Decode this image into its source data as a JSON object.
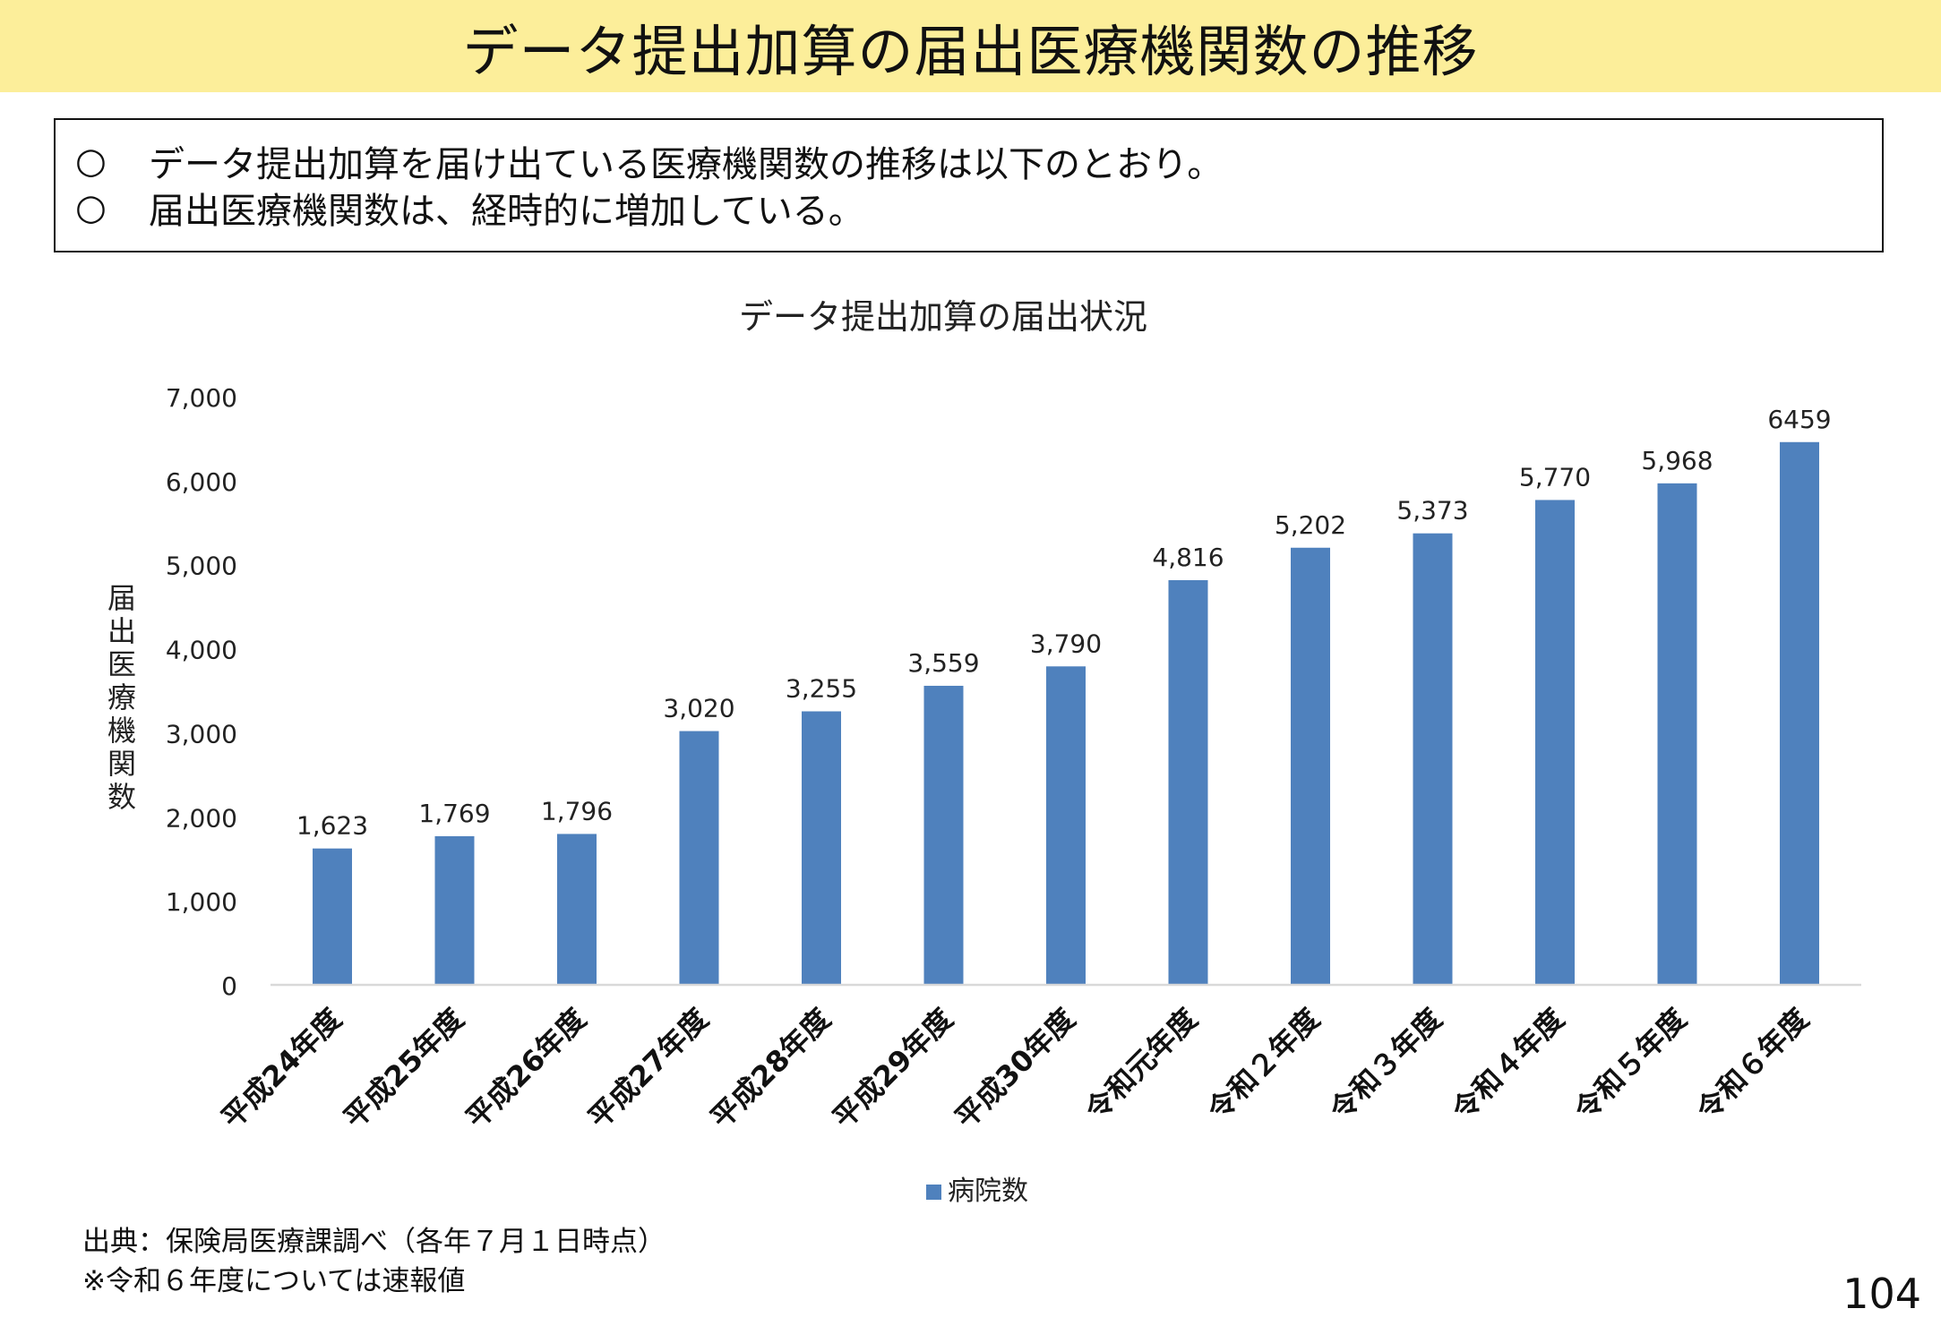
{
  "header": {
    "title": "データ提出加算の届出医療機関数の推移"
  },
  "summary": {
    "bullets": [
      {
        "mark": "○",
        "text": "データ提出加算を届け出ている医療機関数の推移は以下のとおり。"
      },
      {
        "mark": "○",
        "text": "届出医療機関数は、経時的に増加している。"
      }
    ]
  },
  "chart_data": {
    "type": "bar",
    "title": "データ提出加算の届出状況",
    "xlabel": "",
    "ylabel": "届出医療機関数",
    "ylim": [
      0,
      7000
    ],
    "yticks": [
      0,
      1000,
      2000,
      3000,
      4000,
      5000,
      6000,
      7000
    ],
    "ytick_labels": [
      "0",
      "1,000",
      "2,000",
      "3,000",
      "4,000",
      "5,000",
      "6,000",
      "7,000"
    ],
    "grid": false,
    "legend_position": "bottom",
    "categories": [
      "平成24年度",
      "平成25年度",
      "平成26年度",
      "平成27年度",
      "平成28年度",
      "平成29年度",
      "平成30年度",
      "令和元年度",
      "令和２年度",
      "令和３年度",
      "令和４年度",
      "令和５年度",
      "令和６年度"
    ],
    "series": [
      {
        "name": "病院数",
        "color": "#4f81bd",
        "values": [
          1623,
          1769,
          1796,
          3020,
          3255,
          3559,
          3790,
          4816,
          5202,
          5373,
          5770,
          5968,
          6459
        ],
        "labels": [
          "1,623",
          "1,769",
          "1,796",
          "3,020",
          "3,255",
          "3,559",
          "3,790",
          "4,816",
          "5,202",
          "5,373",
          "5,770",
          "5,968",
          "6459"
        ]
      }
    ]
  },
  "footer": {
    "source": "出典：保険局医療課調べ（各年７月１日時点）",
    "note": "※令和６年度については速報値"
  },
  "page": {
    "number": "104"
  },
  "colors": {
    "title_bar": "#fcee9a",
    "bar": "#4f81bd",
    "axis": "#d9d9d9"
  }
}
